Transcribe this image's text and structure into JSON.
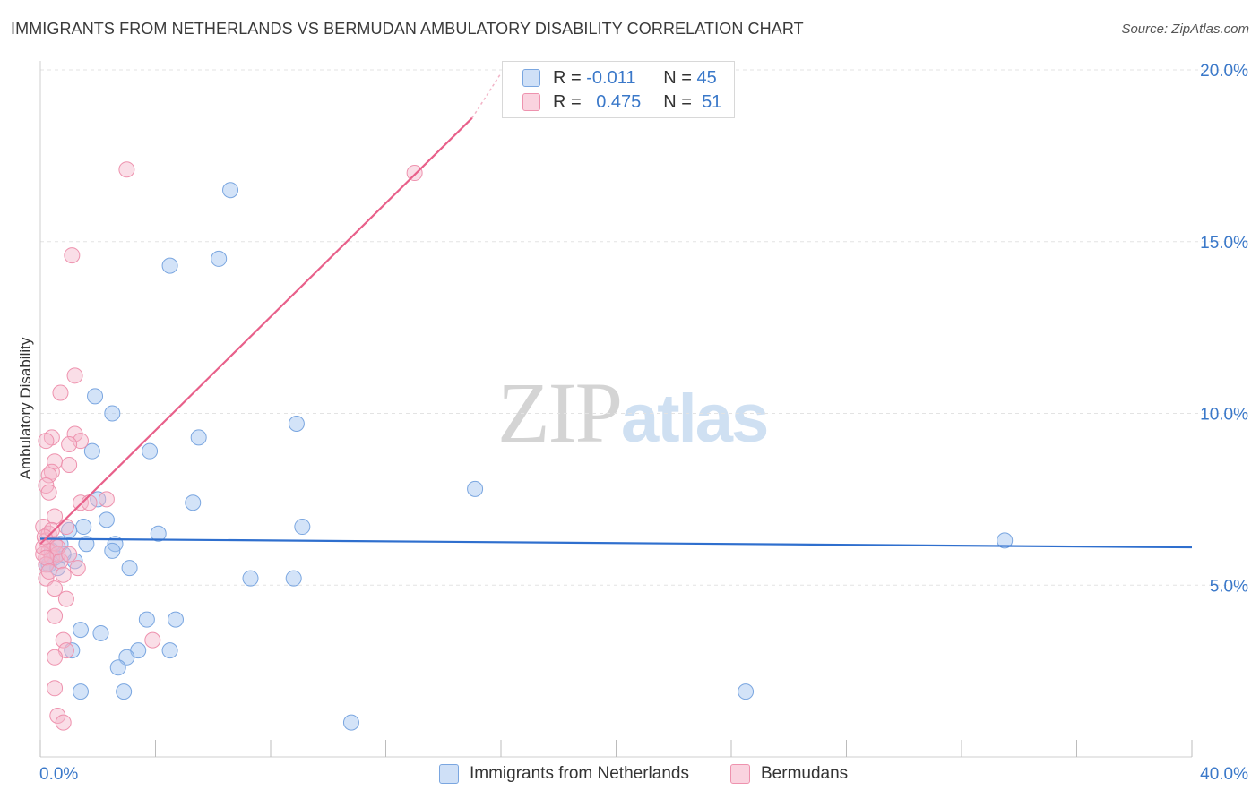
{
  "header": {
    "title": "IMMIGRANTS FROM NETHERLANDS VS BERMUDAN AMBULATORY DISABILITY CORRELATION CHART",
    "source": "Source: ZipAtlas.com"
  },
  "watermark": {
    "zip": "ZIP",
    "atlas": "atlas"
  },
  "legend": {
    "r_label": "R =",
    "n_label": "N =",
    "rows": [
      {
        "r": "-0.011",
        "n": "45",
        "color": "#9ec0ef"
      },
      {
        "r": "0.475",
        "n": "51",
        "color": "#f4b6c9"
      }
    ]
  },
  "bottom_legend": [
    {
      "label": "Immigrants from Netherlands",
      "color": "#9ec0ef"
    },
    {
      "label": "Bermudans",
      "color": "#f4b6c9"
    }
  ],
  "chart_data": {
    "type": "scatter",
    "title": "IMMIGRANTS FROM NETHERLANDS VS BERMUDAN AMBULATORY DISABILITY CORRELATION CHART",
    "xlabel": "",
    "ylabel": "Ambulatory Disability",
    "xlim": [
      0,
      40
    ],
    "ylim": [
      0,
      20.5
    ],
    "x_tick_labels": [
      "0.0%",
      "40.0%"
    ],
    "y_ticks": [
      5,
      10,
      15,
      20
    ],
    "y_tick_labels": [
      "5.0%",
      "10.0%",
      "15.0%",
      "20.0%"
    ],
    "grid": true,
    "legend_placement": "top-center",
    "colors": {
      "blue_fill": "#9ec0ef",
      "blue_line": "#2f6fce",
      "pink_fill": "#f4b6c9",
      "pink_line": "#e8608a"
    },
    "series": [
      {
        "name": "Immigrants from Netherlands",
        "points": [
          [
            6.6,
            16.5
          ],
          [
            4.5,
            14.3
          ],
          [
            6.2,
            14.5
          ],
          [
            1.9,
            10.5
          ],
          [
            2.5,
            10.0
          ],
          [
            8.9,
            9.7
          ],
          [
            5.5,
            9.3
          ],
          [
            1.8,
            8.9
          ],
          [
            3.8,
            8.9
          ],
          [
            15.1,
            7.8
          ],
          [
            2.0,
            7.5
          ],
          [
            5.3,
            7.4
          ],
          [
            2.3,
            6.9
          ],
          [
            9.1,
            6.7
          ],
          [
            1.5,
            6.7
          ],
          [
            1.0,
            6.6
          ],
          [
            4.1,
            6.5
          ],
          [
            1.6,
            6.2
          ],
          [
            2.6,
            6.2
          ],
          [
            2.5,
            6.0
          ],
          [
            0.7,
            6.2
          ],
          [
            0.4,
            6.0
          ],
          [
            0.5,
            5.8
          ],
          [
            1.2,
            5.7
          ],
          [
            3.1,
            5.5
          ],
          [
            0.3,
            5.6
          ],
          [
            0.6,
            5.5
          ],
          [
            7.3,
            5.2
          ],
          [
            8.8,
            5.2
          ],
          [
            33.5,
            6.3
          ],
          [
            3.7,
            4.0
          ],
          [
            4.7,
            4.0
          ],
          [
            1.4,
            3.7
          ],
          [
            2.1,
            3.6
          ],
          [
            1.1,
            3.1
          ],
          [
            3.4,
            3.1
          ],
          [
            4.5,
            3.1
          ],
          [
            3.0,
            2.9
          ],
          [
            2.7,
            2.6
          ],
          [
            1.4,
            1.9
          ],
          [
            2.9,
            1.9
          ],
          [
            24.5,
            1.9
          ],
          [
            10.8,
            1.0
          ],
          [
            0.2,
            5.6
          ],
          [
            0.8,
            5.9
          ]
        ]
      },
      {
        "name": "Bermudans",
        "points": [
          [
            3.0,
            17.1
          ],
          [
            13.0,
            17.0
          ],
          [
            1.1,
            14.6
          ],
          [
            1.2,
            11.1
          ],
          [
            0.7,
            10.6
          ],
          [
            0.4,
            9.3
          ],
          [
            0.2,
            9.2
          ],
          [
            1.2,
            9.4
          ],
          [
            1.4,
            9.2
          ],
          [
            1.0,
            9.1
          ],
          [
            0.5,
            8.6
          ],
          [
            1.0,
            8.5
          ],
          [
            0.4,
            8.3
          ],
          [
            0.3,
            8.2
          ],
          [
            0.2,
            7.9
          ],
          [
            0.3,
            7.7
          ],
          [
            1.4,
            7.4
          ],
          [
            1.7,
            7.4
          ],
          [
            2.3,
            7.5
          ],
          [
            0.5,
            7.0
          ],
          [
            0.1,
            6.7
          ],
          [
            0.3,
            6.5
          ],
          [
            0.9,
            6.7
          ],
          [
            0.2,
            6.3
          ],
          [
            0.5,
            6.2
          ],
          [
            0.3,
            6.0
          ],
          [
            0.1,
            5.9
          ],
          [
            0.4,
            5.8
          ],
          [
            0.6,
            5.9
          ],
          [
            0.7,
            5.7
          ],
          [
            0.2,
            5.6
          ],
          [
            1.3,
            5.5
          ],
          [
            0.8,
            5.3
          ],
          [
            0.2,
            5.2
          ],
          [
            0.5,
            4.9
          ],
          [
            0.9,
            4.6
          ],
          [
            0.5,
            4.1
          ],
          [
            0.8,
            3.4
          ],
          [
            3.9,
            3.4
          ],
          [
            0.9,
            3.1
          ],
          [
            0.5,
            2.9
          ],
          [
            0.5,
            2.0
          ],
          [
            0.6,
            1.2
          ],
          [
            0.8,
            1.0
          ],
          [
            0.1,
            6.1
          ],
          [
            0.2,
            5.8
          ],
          [
            0.4,
            6.6
          ],
          [
            0.6,
            6.1
          ],
          [
            0.3,
            5.4
          ],
          [
            1.0,
            5.9
          ],
          [
            0.15,
            6.4
          ]
        ]
      }
    ],
    "trendlines": [
      {
        "series": "Immigrants from Netherlands",
        "x": [
          0,
          40
        ],
        "y": [
          6.35,
          6.1
        ]
      },
      {
        "series": "Bermudans",
        "x": [
          0,
          15
        ],
        "y": [
          6.2,
          18.6
        ],
        "dashed_extension_to": [
          16,
          19.9
        ]
      }
    ]
  }
}
